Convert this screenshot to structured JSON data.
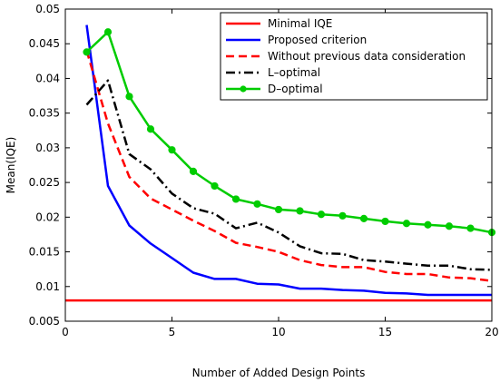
{
  "chart_data": {
    "type": "line",
    "xlabel": "Number of Added Design Points",
    "ylabel": "Mean(IQE)",
    "xlim": [
      0,
      20
    ],
    "ylim": [
      0.005,
      0.05
    ],
    "xticks": [
      0,
      5,
      10,
      15,
      20
    ],
    "yticks": [
      0.005,
      0.01,
      0.015,
      0.02,
      0.025,
      0.03,
      0.035,
      0.04,
      0.045,
      0.05
    ],
    "xtick_labels": [
      "0",
      "5",
      "10",
      "15",
      "20"
    ],
    "ytick_labels": [
      "0.005",
      "0.01",
      "0.015",
      "0.02",
      "0.025",
      "0.03",
      "0.035",
      "0.04",
      "0.045",
      "0.05"
    ],
    "grid": false,
    "legend_position": "top-right",
    "x": [
      1,
      2,
      3,
      4,
      5,
      6,
      7,
      8,
      9,
      10,
      11,
      12,
      13,
      14,
      15,
      16,
      17,
      18,
      19,
      20
    ],
    "series": [
      {
        "name": "Minimal IQE",
        "color": "#ff0000",
        "style": "solid",
        "marker": "none",
        "x": [
          0,
          20
        ],
        "values": [
          0.008,
          0.008
        ]
      },
      {
        "name": "Proposed criterion",
        "color": "#0000ff",
        "style": "solid",
        "marker": "none",
        "values": [
          0.0477,
          0.0245,
          0.0188,
          0.0162,
          0.0141,
          0.012,
          0.0111,
          0.0111,
          0.0104,
          0.0103,
          0.0097,
          0.0097,
          0.0095,
          0.0094,
          0.0091,
          0.009,
          0.0088,
          0.0088,
          0.0088,
          0.0088
        ]
      },
      {
        "name": "Without previous data consideration",
        "color": "#ff0000",
        "style": "dashed",
        "marker": "none",
        "values": [
          0.044,
          0.0335,
          0.0258,
          0.0227,
          0.0211,
          0.0195,
          0.018,
          0.0163,
          0.0157,
          0.015,
          0.0138,
          0.0131,
          0.0128,
          0.0128,
          0.0121,
          0.0118,
          0.0118,
          0.0113,
          0.0112,
          0.0108
        ]
      },
      {
        "name": "L–optimal",
        "color": "#000000",
        "style": "dashdot",
        "marker": "none",
        "values": [
          0.0362,
          0.0397,
          0.0291,
          0.0269,
          0.0234,
          0.0213,
          0.0205,
          0.0184,
          0.0192,
          0.0178,
          0.0158,
          0.0148,
          0.0147,
          0.0138,
          0.0136,
          0.0133,
          0.013,
          0.013,
          0.0125,
          0.0124
        ]
      },
      {
        "name": "D–optimal",
        "color": "#00cc00",
        "style": "solid",
        "marker": "circle",
        "values": [
          0.0438,
          0.0467,
          0.0374,
          0.0327,
          0.0297,
          0.0266,
          0.0245,
          0.0226,
          0.0219,
          0.0211,
          0.0209,
          0.0204,
          0.0202,
          0.0198,
          0.0194,
          0.0191,
          0.0189,
          0.0187,
          0.0184,
          0.0178
        ]
      }
    ]
  }
}
